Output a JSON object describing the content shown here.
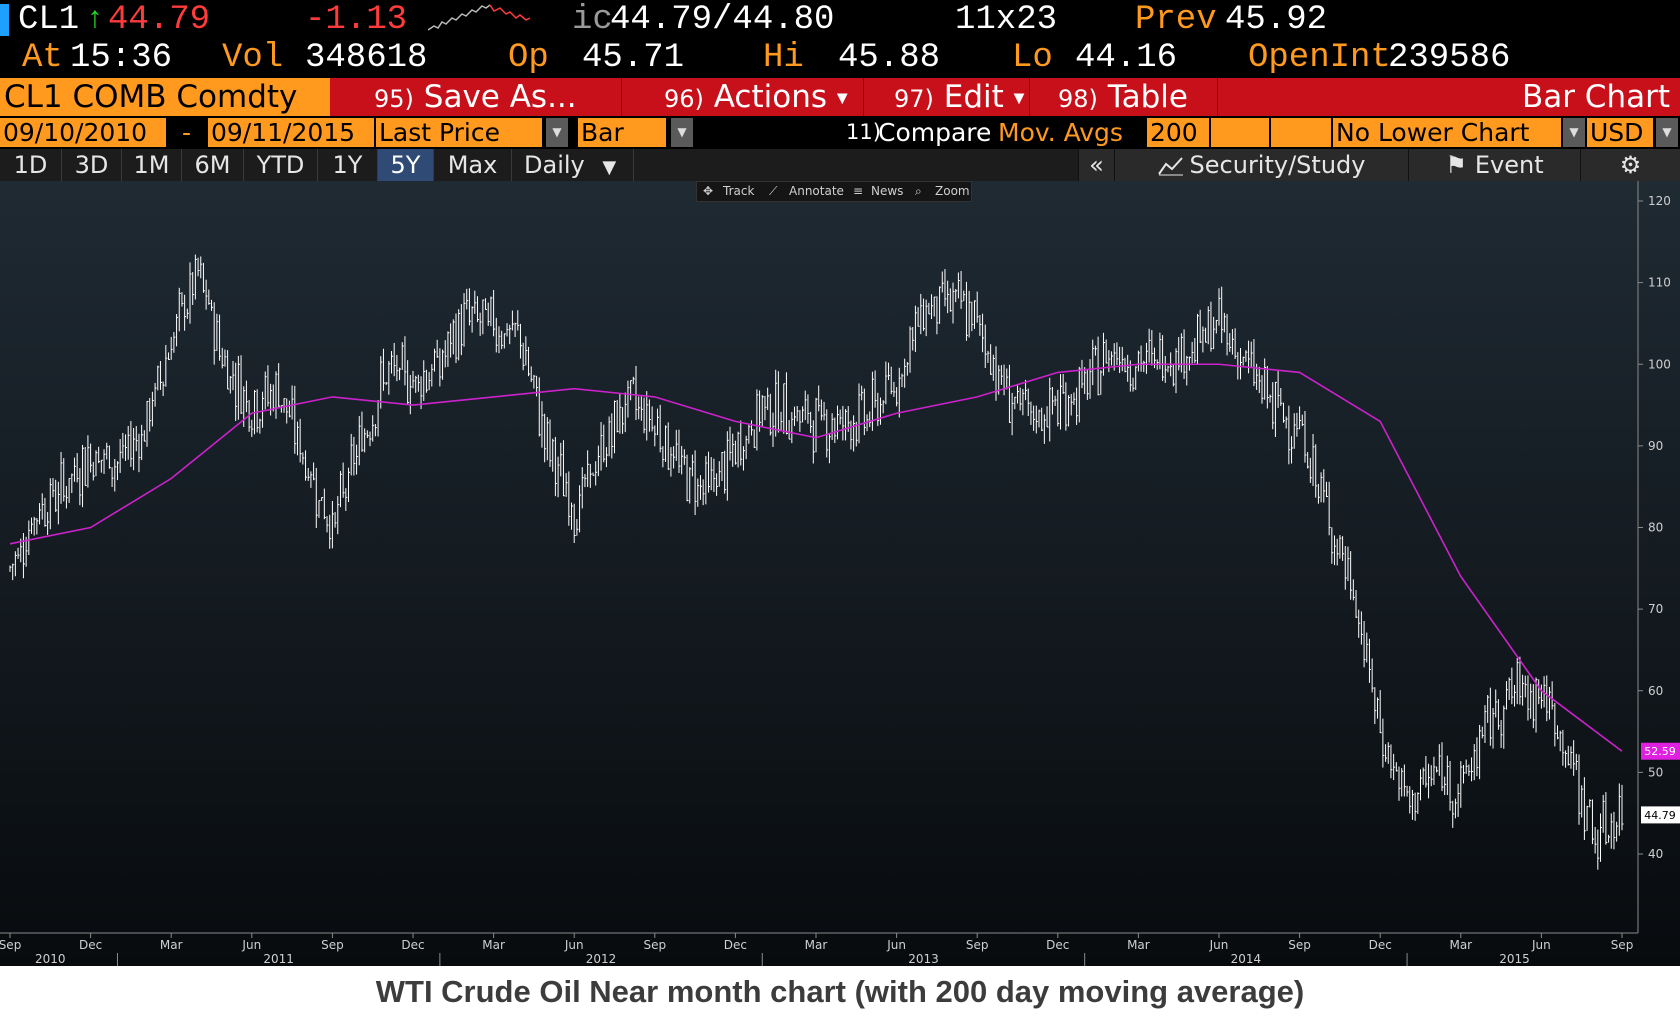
{
  "quote": {
    "ticker": "CL1",
    "arrow": "↑",
    "last": "44.79",
    "change": "-1.13",
    "bid_ask_prefix": "ic",
    "bid_ask": "44.79/44.80",
    "size": "11x23",
    "prev_label": "Prev",
    "prev": "45.92",
    "at_label": "At",
    "time": "15:36",
    "vol_label": "Vol",
    "vol": "348618",
    "op_label": "Op",
    "op": "45.71",
    "hi_label": "Hi",
    "hi": "45.88",
    "lo_label": "Lo",
    "lo": "44.16",
    "oi_label": "OpenInt",
    "oi": "239586"
  },
  "title_bar": {
    "security": "CL1 COMB Comdty",
    "save_num": "95)",
    "save_label": "Save As...",
    "actions_num": "96)",
    "actions_label": "Actions",
    "edit_num": "97)",
    "edit_label": "Edit",
    "table_num": "98)",
    "table_label": "Table",
    "chart_title": "Bar Chart"
  },
  "options": {
    "start_date": "09/10/2010",
    "dash": "-",
    "end_date": "09/11/2015",
    "field": "Last Price",
    "chart_type": "Bar",
    "compare_num": "11)",
    "compare_label": "Compare",
    "study": "Mov. Avgs",
    "period": "200",
    "lower_chart": "No Lower Chart",
    "currency": "USD"
  },
  "ranges": {
    "items": [
      "1D",
      "3D",
      "1M",
      "6M",
      "YTD",
      "1Y",
      "5Y",
      "Max"
    ],
    "selected": "5Y",
    "frequency": "Daily",
    "collapse": "«",
    "security_study": "Security/Study",
    "event": "Event"
  },
  "chart_toolbar": {
    "track": "Track",
    "annotate": "Annotate",
    "news": "News",
    "zoom": "Zoom"
  },
  "caption": "WTI Crude Oil Near month chart (with 200 day moving average)",
  "chart_data": {
    "type": "line",
    "title": "",
    "ylim": [
      33,
      122
    ],
    "y_ticks": [
      40,
      50,
      60,
      70,
      80,
      90,
      100,
      110,
      120
    ],
    "x_month_ticks": [
      "Sep",
      "Dec",
      "Mar",
      "Jun",
      "Sep",
      "Dec",
      "Mar",
      "Jun",
      "Sep",
      "Dec",
      "Mar",
      "Jun",
      "Sep",
      "Dec",
      "Mar",
      "Jun",
      "Sep",
      "Dec",
      "Mar",
      "Jun",
      "Sep"
    ],
    "x_year_labels": [
      "2010",
      "2011",
      "2012",
      "2013",
      "2014",
      "2015"
    ],
    "colors": {
      "price": "#ffffff",
      "moving_average": "#cc22cc",
      "ma_label_bg": "#e020e0"
    },
    "last_price_label": "44.79",
    "ma_label": "52.59",
    "series": [
      {
        "style": "ohlc-bars",
        "color": "#ffffff",
        "x": [
          "2010-09",
          "2010-10",
          "2010-11",
          "2010-12",
          "2011-01",
          "2011-02",
          "2011-03",
          "2011-04",
          "2011-05",
          "2011-06",
          "2011-07",
          "2011-08",
          "2011-09",
          "2011-10",
          "2011-11",
          "2011-12",
          "2012-01",
          "2012-02",
          "2012-03",
          "2012-04",
          "2012-05",
          "2012-06",
          "2012-07",
          "2012-08",
          "2012-09",
          "2012-10",
          "2012-11",
          "2012-12",
          "2013-01",
          "2013-02",
          "2013-03",
          "2013-04",
          "2013-05",
          "2013-06",
          "2013-07",
          "2013-08",
          "2013-09",
          "2013-10",
          "2013-11",
          "2013-12",
          "2014-01",
          "2014-02",
          "2014-03",
          "2014-04",
          "2014-05",
          "2014-06",
          "2014-07",
          "2014-08",
          "2014-09",
          "2014-10",
          "2014-11",
          "2014-12",
          "2015-01",
          "2015-02",
          "2015-03",
          "2015-04",
          "2015-05",
          "2015-06",
          "2015-07",
          "2015-08",
          "2015-09"
        ],
        "values": [
          75,
          82,
          85,
          89,
          88,
          92,
          103,
          111,
          100,
          95,
          97,
          88,
          80,
          90,
          99,
          98,
          100,
          106,
          105,
          103,
          90,
          82,
          89,
          96,
          93,
          87,
          85,
          89,
          95,
          94,
          93,
          93,
          94,
          98,
          107,
          108,
          105,
          97,
          93,
          95,
          97,
          102,
          100,
          101,
          102,
          105,
          100,
          95,
          92,
          82,
          72,
          55,
          46,
          50,
          48,
          56,
          60,
          60,
          52,
          42,
          45
        ]
      },
      {
        "name": "Mov. Avgs",
        "style": "line",
        "color": "#cc22cc",
        "x": [
          "2010-09",
          "2010-12",
          "2011-03",
          "2011-06",
          "2011-09",
          "2011-12",
          "2012-03",
          "2012-06",
          "2012-09",
          "2012-12",
          "2013-03",
          "2013-06",
          "2013-09",
          "2013-12",
          "2014-03",
          "2014-06",
          "2014-09",
          "2014-12",
          "2015-03",
          "2015-06",
          "2015-09"
        ],
        "values": [
          78,
          80,
          86,
          94,
          96,
          95,
          96,
          97,
          96,
          93,
          91,
          94,
          96,
          99,
          100,
          100,
          99,
          93,
          74,
          60,
          52.59
        ]
      }
    ]
  }
}
